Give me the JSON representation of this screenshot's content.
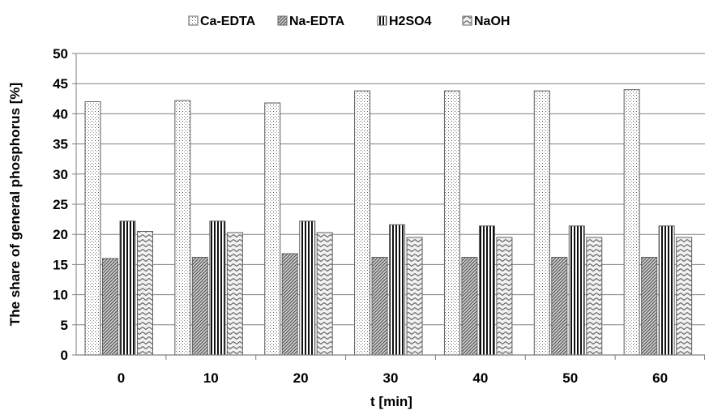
{
  "chart_data": {
    "type": "bar",
    "title": "",
    "xlabel": "t [min]",
    "ylabel": "The share of general phosphorus  [%]",
    "categories": [
      "0",
      "10",
      "20",
      "30",
      "40",
      "50",
      "60"
    ],
    "ylim": [
      0,
      50
    ],
    "yticks": [
      0,
      5,
      10,
      15,
      20,
      25,
      30,
      35,
      40,
      45,
      50
    ],
    "grid": true,
    "legend_position": "top",
    "series": [
      {
        "name": "Ca-EDTA",
        "pattern": "dots",
        "values": [
          42,
          42.2,
          41.8,
          43.8,
          43.8,
          43.8,
          44
        ]
      },
      {
        "name": "Na-EDTA",
        "pattern": "diagonal",
        "values": [
          16,
          16.2,
          16.8,
          16.2,
          16.2,
          16.2,
          16.2
        ]
      },
      {
        "name": "H2SO4",
        "pattern": "vertical",
        "values": [
          22.2,
          22.2,
          22.2,
          21.6,
          21.4,
          21.4,
          21.4
        ]
      },
      {
        "name": "NaOH",
        "pattern": "zigzag",
        "values": [
          20.5,
          20.3,
          20.3,
          19.5,
          19.5,
          19.5,
          19.5
        ]
      }
    ]
  }
}
